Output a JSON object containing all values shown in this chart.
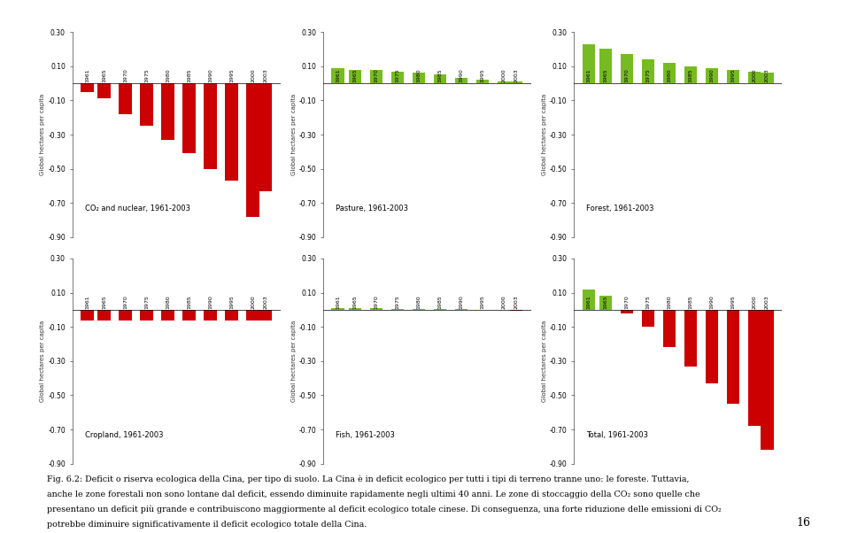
{
  "years": [
    1961,
    1965,
    1970,
    1975,
    1980,
    1985,
    1990,
    1995,
    2000,
    2003
  ],
  "charts": [
    {
      "title": "CO₂ and nuclear, 1961-2003",
      "values": [
        -0.05,
        -0.09,
        -0.18,
        -0.25,
        -0.33,
        -0.41,
        -0.5,
        -0.57,
        -0.78,
        -0.63
      ],
      "color": "#cc0000",
      "ylim": [
        -0.9,
        0.3
      ],
      "yticks": [
        0.3,
        0.1,
        -0.1,
        -0.3,
        -0.5,
        -0.7,
        -0.9
      ]
    },
    {
      "title": "Pasture, 1961-2003",
      "values": [
        0.09,
        0.08,
        0.08,
        0.07,
        0.06,
        0.05,
        0.03,
        0.02,
        0.01,
        0.01
      ],
      "color": "#77bb22",
      "ylim": [
        -0.9,
        0.3
      ],
      "yticks": [
        0.3,
        0.1,
        -0.1,
        -0.3,
        -0.5,
        -0.7,
        -0.9
      ]
    },
    {
      "title": "Forest, 1961-2003",
      "values": [
        0.23,
        0.2,
        0.17,
        0.14,
        0.12,
        0.1,
        0.09,
        0.08,
        0.07,
        0.06
      ],
      "color": "#77bb22",
      "ylim": [
        -0.9,
        0.3
      ],
      "yticks": [
        0.3,
        0.1,
        -0.1,
        -0.3,
        -0.5,
        -0.7,
        -0.9
      ]
    },
    {
      "title": "Cropland, 1961-2003",
      "values": [
        -0.065,
        -0.065,
        -0.065,
        -0.065,
        -0.065,
        -0.065,
        -0.065,
        -0.065,
        -0.065,
        -0.065
      ],
      "color": "#cc0000",
      "ylim": [
        -0.9,
        0.3
      ],
      "yticks": [
        0.3,
        0.1,
        -0.1,
        -0.3,
        -0.5,
        -0.7,
        -0.9
      ]
    },
    {
      "title": "Fish, 1961-2003",
      "values": [
        0.012,
        0.01,
        0.008,
        0.005,
        0.004,
        0.003,
        0.003,
        -0.003,
        -0.003,
        -0.004
      ],
      "color_pos": "#77bb22",
      "color_neg": "#cc0000",
      "ylim": [
        -0.9,
        0.3
      ],
      "yticks": [
        0.3,
        0.1,
        -0.1,
        -0.3,
        -0.5,
        -0.7,
        -0.9
      ]
    },
    {
      "title": "Total, 1961-2003",
      "values": [
        0.12,
        0.08,
        -0.02,
        -0.1,
        -0.22,
        -0.33,
        -0.43,
        -0.55,
        -0.68,
        -0.82
      ],
      "color_pos": "#77bb22",
      "color_neg": "#cc0000",
      "ylim": [
        -0.9,
        0.3
      ],
      "yticks": [
        0.3,
        0.1,
        -0.1,
        -0.3,
        -0.5,
        -0.7,
        -0.9
      ]
    }
  ],
  "ylabel": "Global hectares per capita",
  "teal_color": "#007878",
  "bg_color": "#ffffff",
  "caption_lines": [
    "Fig. 6.2: Deficit o riserva ecologica della Cina, per tipo di suolo. La Cina è in deficit ecologico per tutti i tipi di terreno tranne uno: le foreste. Tuttavia,",
    "anche le zone forestali non sono lontane dal deficit, essendo diminuite rapidamente negli ultimi 40 anni. Le zone di stoccaggio della CO₂ sono quelle che",
    "presentano un deficit più grande e contribuiscono maggiormente al deficit ecologico totale cinese. Di conseguenza, una forte riduzione delle emissioni di CO₂",
    "potrebbe diminuire significativamente il deficit ecologico totale della Cina."
  ],
  "page_num": "16"
}
